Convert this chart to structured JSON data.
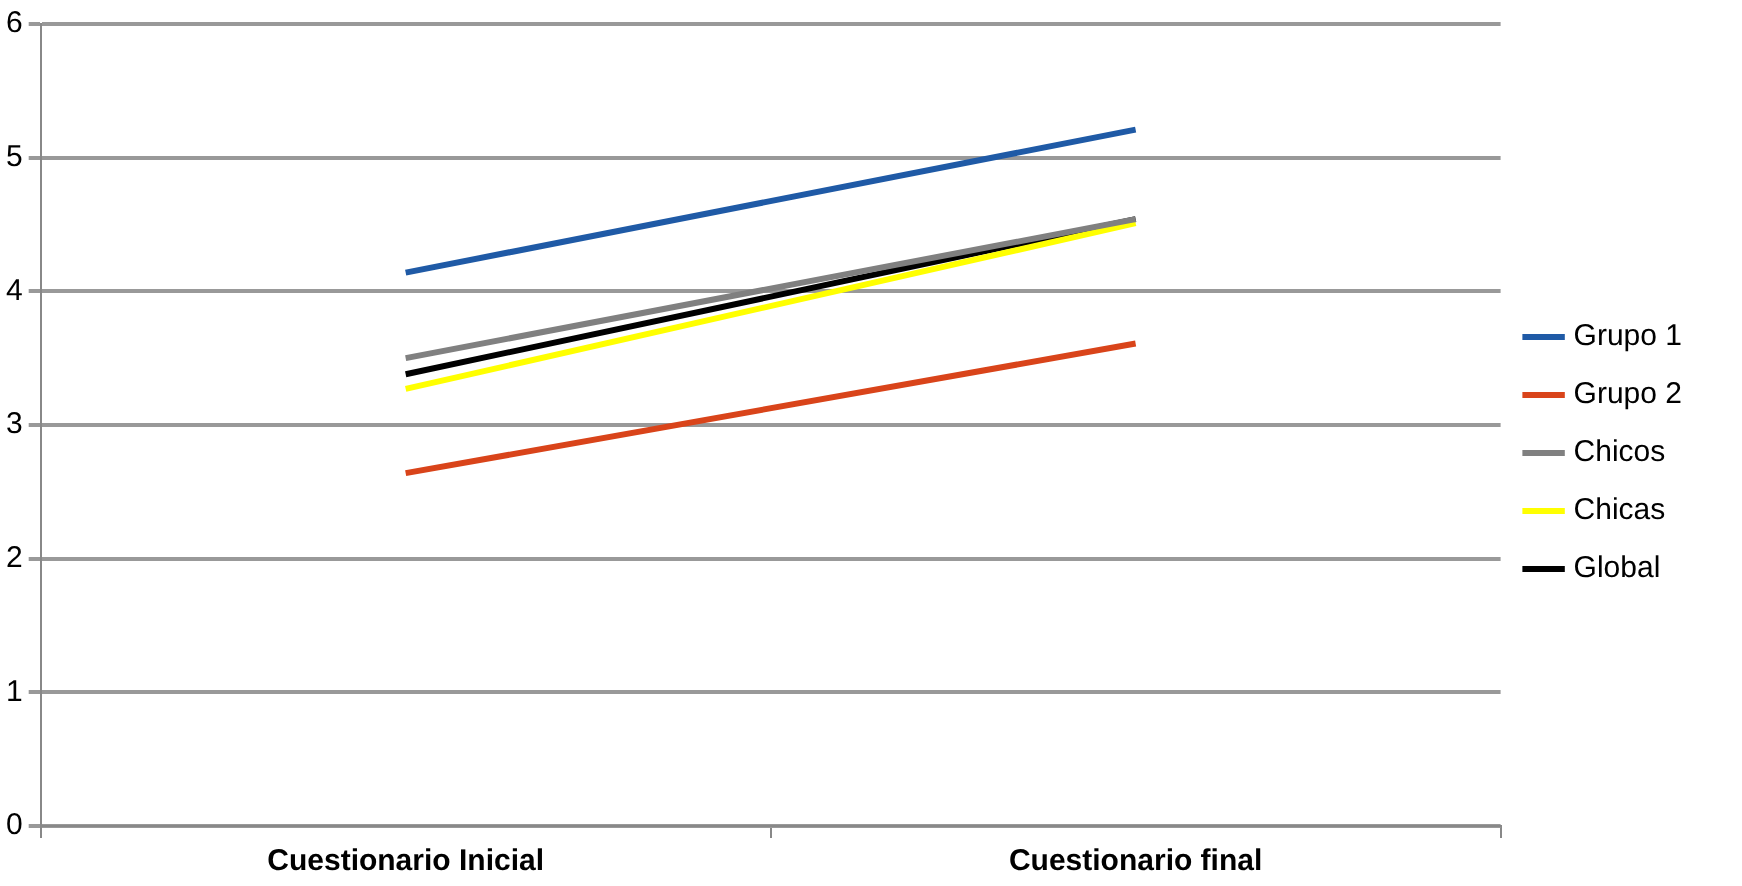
{
  "chart_data": {
    "type": "line",
    "categories": [
      "Cuestionario Inicial",
      "Cuestionario final"
    ],
    "series": [
      {
        "name": "Grupo 1",
        "color": "#1f5aa6",
        "values": [
          4.14,
          5.21
        ]
      },
      {
        "name": "Grupo 2",
        "color": "#d9441a",
        "values": [
          2.64,
          3.61
        ]
      },
      {
        "name": "Chicos",
        "color": "#808080",
        "values": [
          3.5,
          4.54
        ]
      },
      {
        "name": "Chicas",
        "color": "#ffff00",
        "values": [
          3.27,
          4.51
        ]
      },
      {
        "name": "Global",
        "color": "#000000",
        "values": [
          3.38,
          4.54
        ]
      }
    ],
    "ylim": [
      0,
      6
    ],
    "yticks": [
      0,
      1,
      2,
      3,
      4,
      5,
      6
    ],
    "grid": "y",
    "legend": "right",
    "marker": "none",
    "line_style": "solid"
  }
}
